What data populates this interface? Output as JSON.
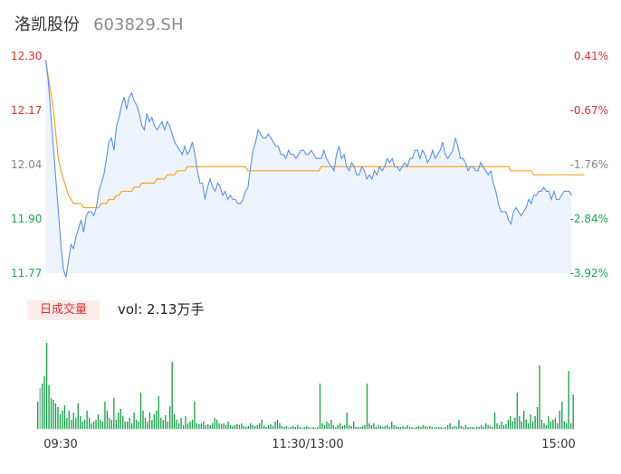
{
  "header": {
    "name": "洛凯股份",
    "code": "603829.SH"
  },
  "volume_panel": {
    "tag_label": "日成交量",
    "readout": "vol: 2.13万手"
  },
  "colors": {
    "price_line": "#5b8ff9",
    "avg_line": "#f5a623",
    "up": "#e0302b",
    "down": "#1aa64b",
    "area_fill": "#eef4fd"
  },
  "chart_data": [
    {
      "type": "line",
      "y_ticks_left": [
        "12.30",
        "12.17",
        "12.04",
        "11.90",
        "11.77"
      ],
      "y_ticks_right": [
        "0.41%",
        "-0.67%",
        "-1.76%",
        "-2.84%",
        "-3.92%"
      ],
      "y_tick_colors_right": [
        "#e0302b",
        "#e0302b",
        "#888888",
        "#1aa64b",
        "#1aa64b"
      ],
      "y_tick_colors_left": [
        "#e0302b",
        "#e0302b",
        "#888888",
        "#1aa64b",
        "#1aa64b"
      ],
      "ylim": [
        11.77,
        12.3
      ],
      "x_ticks": [
        "09:30",
        "11:30/13:00",
        "15:00"
      ],
      "series": [
        {
          "values": [
            12.29,
            12.24,
            12.16,
            12.08,
            12.0,
            11.92,
            11.84,
            11.78,
            11.76,
            11.8,
            11.84,
            11.83,
            11.86,
            11.88,
            11.9,
            11.87,
            11.91,
            11.92,
            11.92,
            11.91,
            11.93,
            11.97,
            11.99,
            12.01,
            12.05,
            12.09,
            12.1,
            12.07,
            12.13,
            12.15,
            12.18,
            12.2,
            12.17,
            12.2,
            12.21,
            12.19,
            12.18,
            12.16,
            12.13,
            12.12,
            12.16,
            12.14,
            12.15,
            12.13,
            12.12,
            12.13,
            12.14,
            12.12,
            12.14,
            12.13,
            12.11,
            12.09,
            12.08,
            12.07,
            12.06,
            12.08,
            12.06,
            12.07,
            12.09,
            12.06,
            12.02,
            11.99,
            11.99,
            11.95,
            11.98,
            12.0,
            11.98,
            11.97,
            11.99,
            11.98,
            11.96,
            11.97,
            11.95,
            11.96,
            11.95,
            11.95,
            11.94,
            11.94,
            11.95,
            11.97,
            11.98,
            12.03,
            12.07,
            12.09,
            12.12,
            12.11,
            12.1,
            12.1,
            12.11,
            12.1,
            12.09,
            12.08,
            12.08,
            12.06,
            12.06,
            12.05,
            12.07,
            12.06,
            12.06,
            12.05,
            12.06,
            12.07,
            12.07,
            12.06,
            12.06,
            12.07,
            12.06,
            12.05,
            12.05,
            12.05,
            12.07,
            12.05,
            12.04,
            12.03,
            12.02,
            12.06,
            12.08,
            12.05,
            12.06,
            12.03,
            12.02,
            12.04,
            12.03,
            12.01,
            12.01,
            12.03,
            12.02,
            12.0,
            12.01,
            12.0,
            12.02,
            12.01,
            12.03,
            12.02,
            12.03,
            12.05,
            12.04,
            12.05,
            12.03,
            12.03,
            12.02,
            12.03,
            12.04,
            12.03,
            12.05,
            12.05,
            12.07,
            12.07,
            12.05,
            12.07,
            12.06,
            12.04,
            12.05,
            12.07,
            12.05,
            12.06,
            12.07,
            12.09,
            12.06,
            12.05,
            12.06,
            12.07,
            12.1,
            12.08,
            12.05,
            12.05,
            12.04,
            12.02,
            12.03,
            12.03,
            12.02,
            12.02,
            12.04,
            12.03,
            12.02,
            12.01,
            12.02,
            11.99,
            11.97,
            11.94,
            11.92,
            11.92,
            11.92,
            11.9,
            11.89,
            11.92,
            11.93,
            11.92,
            11.91,
            11.92,
            11.93,
            11.95,
            11.94,
            11.96,
            11.96,
            11.97,
            11.97,
            11.98,
            11.97,
            11.97,
            11.95,
            11.97,
            11.95,
            11.95,
            11.96,
            11.97,
            11.97,
            11.97,
            11.96
          ],
          "color": "#5b8ff9"
        },
        {
          "values": [
            12.29,
            12.25,
            12.21,
            12.17,
            12.11,
            12.05,
            12.02,
            12.0,
            11.98,
            11.96,
            11.95,
            11.94,
            11.94,
            11.94,
            11.94,
            11.93,
            11.93,
            11.93,
            11.93,
            11.93,
            11.93,
            11.93,
            11.94,
            11.94,
            11.94,
            11.95,
            11.95,
            11.95,
            11.96,
            11.96,
            11.97,
            11.97,
            11.97,
            11.97,
            11.97,
            11.98,
            11.98,
            11.98,
            11.99,
            11.99,
            11.99,
            11.99,
            11.99,
            11.99,
            12.0,
            12.0,
            12.0,
            12.0,
            12.01,
            12.01,
            12.01,
            12.01,
            12.02,
            12.02,
            12.02,
            12.02,
            12.03,
            12.03,
            12.03,
            12.03,
            12.03,
            12.03,
            12.03,
            12.03,
            12.03,
            12.03,
            12.03,
            12.03,
            12.03,
            12.03,
            12.03,
            12.03,
            12.03,
            12.03,
            12.03,
            12.03,
            12.03,
            12.03,
            12.03,
            12.03,
            12.02,
            12.02,
            12.02,
            12.02,
            12.02,
            12.02,
            12.02,
            12.02,
            12.02,
            12.02,
            12.02,
            12.02,
            12.02,
            12.02,
            12.02,
            12.02,
            12.02,
            12.02,
            12.02,
            12.02,
            12.02,
            12.02,
            12.02,
            12.02,
            12.02,
            12.02,
            12.02,
            12.02,
            12.02,
            12.03,
            12.03,
            12.03,
            12.03,
            12.03,
            12.03,
            12.03,
            12.03,
            12.03,
            12.03,
            12.03,
            12.03,
            12.03,
            12.03,
            12.03,
            12.03,
            12.03,
            12.03,
            12.03,
            12.03,
            12.03,
            12.03,
            12.03,
            12.03,
            12.03,
            12.03,
            12.03,
            12.03,
            12.03,
            12.03,
            12.03,
            12.03,
            12.03,
            12.03,
            12.03,
            12.03,
            12.03,
            12.03,
            12.03,
            12.03,
            12.03,
            12.03,
            12.03,
            12.03,
            12.03,
            12.03,
            12.03,
            12.03,
            12.03,
            12.03,
            12.03,
            12.03,
            12.03,
            12.03,
            12.03,
            12.03,
            12.03,
            12.03,
            12.03,
            12.03,
            12.03,
            12.03,
            12.03,
            12.03,
            12.03,
            12.03,
            12.03,
            12.03,
            12.03,
            12.03,
            12.03,
            12.03,
            12.03,
            12.03,
            12.03,
            12.02,
            12.02,
            12.02,
            12.02,
            12.02,
            12.02,
            12.02,
            12.02,
            12.02,
            12.01,
            12.01,
            12.01,
            12.01,
            12.01,
            12.01,
            12.01,
            12.01,
            12.01,
            12.01,
            12.01,
            12.01,
            12.01,
            12.01,
            12.01,
            12.01,
            12.01,
            12.01,
            12.01,
            12.01,
            12.01
          ],
          "color": "#f5a623"
        }
      ]
    },
    {
      "type": "bar",
      "values": [
        30,
        45,
        50,
        58,
        95,
        48,
        34,
        32,
        28,
        24,
        16,
        20,
        26,
        12,
        20,
        10,
        18,
        12,
        28,
        14,
        8,
        10,
        20,
        12,
        6,
        8,
        10,
        16,
        10,
        8,
        30,
        20,
        12,
        10,
        34,
        10,
        18,
        22,
        14,
        8,
        8,
        12,
        6,
        18,
        10,
        8,
        40,
        20,
        12,
        8,
        18,
        10,
        16,
        20,
        36,
        12,
        10,
        15,
        8,
        25,
        74,
        16,
        10,
        6,
        12,
        4,
        14,
        6,
        8,
        10,
        30,
        6,
        5,
        6,
        8,
        4,
        5,
        4,
        6,
        12,
        10,
        6,
        5,
        6,
        4,
        8,
        4,
        3,
        4,
        5,
        4,
        6,
        3,
        2,
        3,
        6,
        4,
        3,
        4,
        6,
        10,
        3,
        2,
        4,
        5,
        3,
        8,
        10,
        6,
        3,
        2,
        3,
        1,
        2,
        3,
        2,
        4,
        2,
        1,
        2,
        3,
        2,
        1,
        2,
        1,
        2,
        50,
        6,
        4,
        8,
        6,
        10,
        4,
        2,
        4,
        6,
        3,
        4,
        18,
        4,
        3,
        8,
        2,
        2,
        2,
        3,
        4,
        50,
        6,
        4,
        6,
        2,
        4,
        3,
        2,
        3,
        4,
        2,
        8,
        4,
        3,
        2,
        2,
        3,
        2,
        4,
        2,
        2,
        1,
        2,
        3,
        2,
        4,
        3,
        2,
        3,
        2,
        1,
        2,
        2,
        2,
        1,
        2,
        4,
        6,
        2,
        3,
        2,
        10,
        3,
        2,
        4,
        2,
        2,
        2,
        1,
        2,
        2,
        4,
        2,
        6,
        4,
        3,
        2,
        18,
        6,
        4,
        8,
        4,
        5,
        10,
        14,
        8,
        12,
        40,
        14,
        8,
        20,
        10,
        6,
        16,
        8,
        14,
        24,
        70,
        10,
        6,
        4,
        14,
        8,
        10,
        12,
        6,
        20,
        30,
        8,
        6,
        64,
        6,
        38
      ],
      "colors": "dcdddddddddddddddddddddddddddddddddddddddddddddddddddddddddddddddddddddddddddddddddddddddddddddddddddddddddddddddddddddddddddddddddddddddddddddddddddddddddddddddddddddddddddddddddddddddddddddddddddddddddddddddddddddddddddddddddddddddddd",
      "ylim": [
        0,
        100
      ]
    }
  ]
}
